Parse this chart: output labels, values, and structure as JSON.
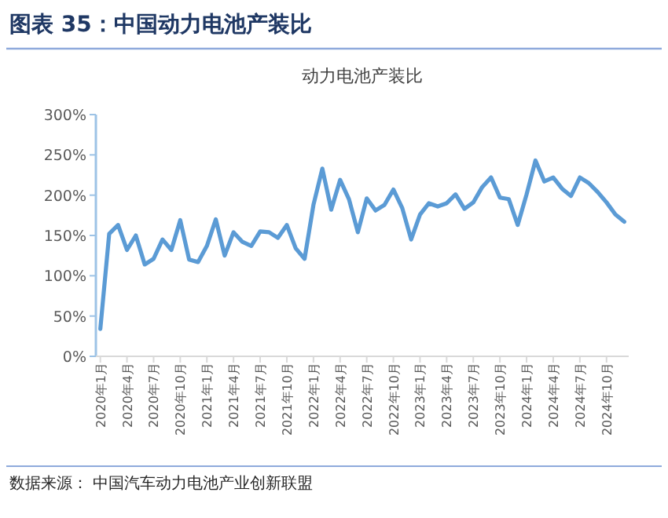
{
  "chart_data": {
    "type": "line",
    "title": "图表 35：中国动力电池产装比",
    "subtitle": "动力电池产装比",
    "categories": [
      "2020年1月",
      null,
      null,
      "2020年4月",
      null,
      null,
      "2020年7月",
      null,
      null,
      "2020年10月",
      null,
      null,
      "2021年1月",
      null,
      null,
      "2021年4月",
      null,
      null,
      "2021年7月",
      null,
      null,
      "2021年10月",
      null,
      null,
      "2022年1月",
      null,
      null,
      "2022年4月",
      null,
      null,
      "2022年7月",
      null,
      null,
      "2022年10月",
      null,
      null,
      "2023年1月",
      null,
      null,
      "2023年4月",
      null,
      null,
      "2023年7月",
      null,
      null,
      "2023年10月",
      null,
      null,
      "2024年1月",
      null,
      null,
      "2024年4月",
      null,
      null,
      "2024年7月",
      null,
      null,
      "2024年10月",
      null,
      null
    ],
    "series": [
      {
        "color": "#5b9bd5",
        "values": [
          34,
          152,
          163,
          132,
          150,
          114,
          121,
          145,
          132,
          169,
          120,
          117,
          137,
          170,
          125,
          154,
          142,
          137,
          155,
          154,
          147,
          163,
          134,
          121,
          188,
          233,
          182,
          219,
          195,
          154,
          196,
          181,
          188,
          207,
          184,
          145,
          176,
          190,
          186,
          190,
          201,
          183,
          191,
          210,
          222,
          197,
          195,
          163,
          201,
          243,
          217,
          222,
          208,
          199,
          222,
          215,
          204,
          191,
          176,
          167
        ]
      }
    ],
    "ylim": [
      0,
      300
    ],
    "yticks": [
      {
        "value": 0,
        "label": "0%"
      },
      {
        "value": 50,
        "label": "50%"
      },
      {
        "value": 100,
        "label": "100%"
      },
      {
        "value": 150,
        "label": "150%"
      },
      {
        "value": 200,
        "label": "200%"
      },
      {
        "value": 250,
        "label": "250%"
      },
      {
        "value": 300,
        "label": "300%"
      }
    ],
    "annotations": [
      "数据来源：  中国汽车动力电池产业创新联盟"
    ]
  }
}
